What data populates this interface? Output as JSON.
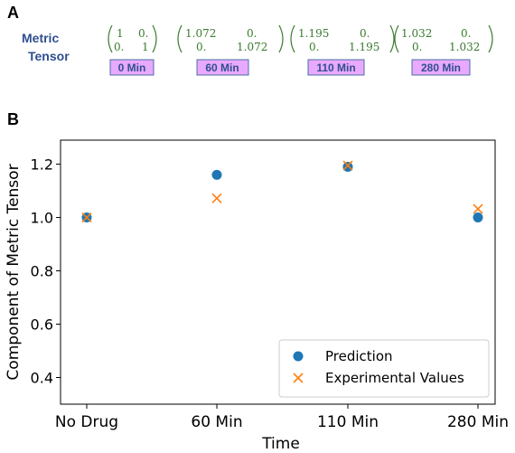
{
  "panel_a": {
    "label": "A",
    "row_label_line1": "Metric",
    "row_label_line2": "Tensor",
    "matrices": [
      {
        "a": "1",
        "b": "0.",
        "c": "0.",
        "d": "1",
        "tag": "0 Min"
      },
      {
        "a": "1.072",
        "b": "0.",
        "c": "0.",
        "d": "1.072",
        "tag": "60 Min"
      },
      {
        "a": "1.195",
        "b": "0.",
        "c": "0.",
        "d": "1.195",
        "tag": "110 Min"
      },
      {
        "a": "1.032",
        "b": "0.",
        "c": "0.",
        "d": "1.032",
        "tag": "280 Min"
      }
    ]
  },
  "panel_b": {
    "label": "B"
  },
  "chart_data": {
    "type": "scatter",
    "title": "",
    "xlabel": "Time",
    "ylabel": "Component of Metric Tensor",
    "categories": [
      "No Drug",
      "60 Min",
      "110 Min",
      "280 Min"
    ],
    "yticks": [
      "0.4",
      "0.6",
      "0.8",
      "1.0",
      "1.2"
    ],
    "ylim": [
      0.3,
      1.29
    ],
    "grid": false,
    "legend_position": "lower-right",
    "series": [
      {
        "name": "Prediction",
        "marker": "circle",
        "color": "#1f77b4",
        "values": [
          1.0,
          1.16,
          1.19,
          1.0
        ]
      },
      {
        "name": "Experimental Values",
        "marker": "x",
        "color": "#ff7f0e",
        "values": [
          1.0,
          1.072,
          1.195,
          1.032
        ]
      }
    ]
  }
}
